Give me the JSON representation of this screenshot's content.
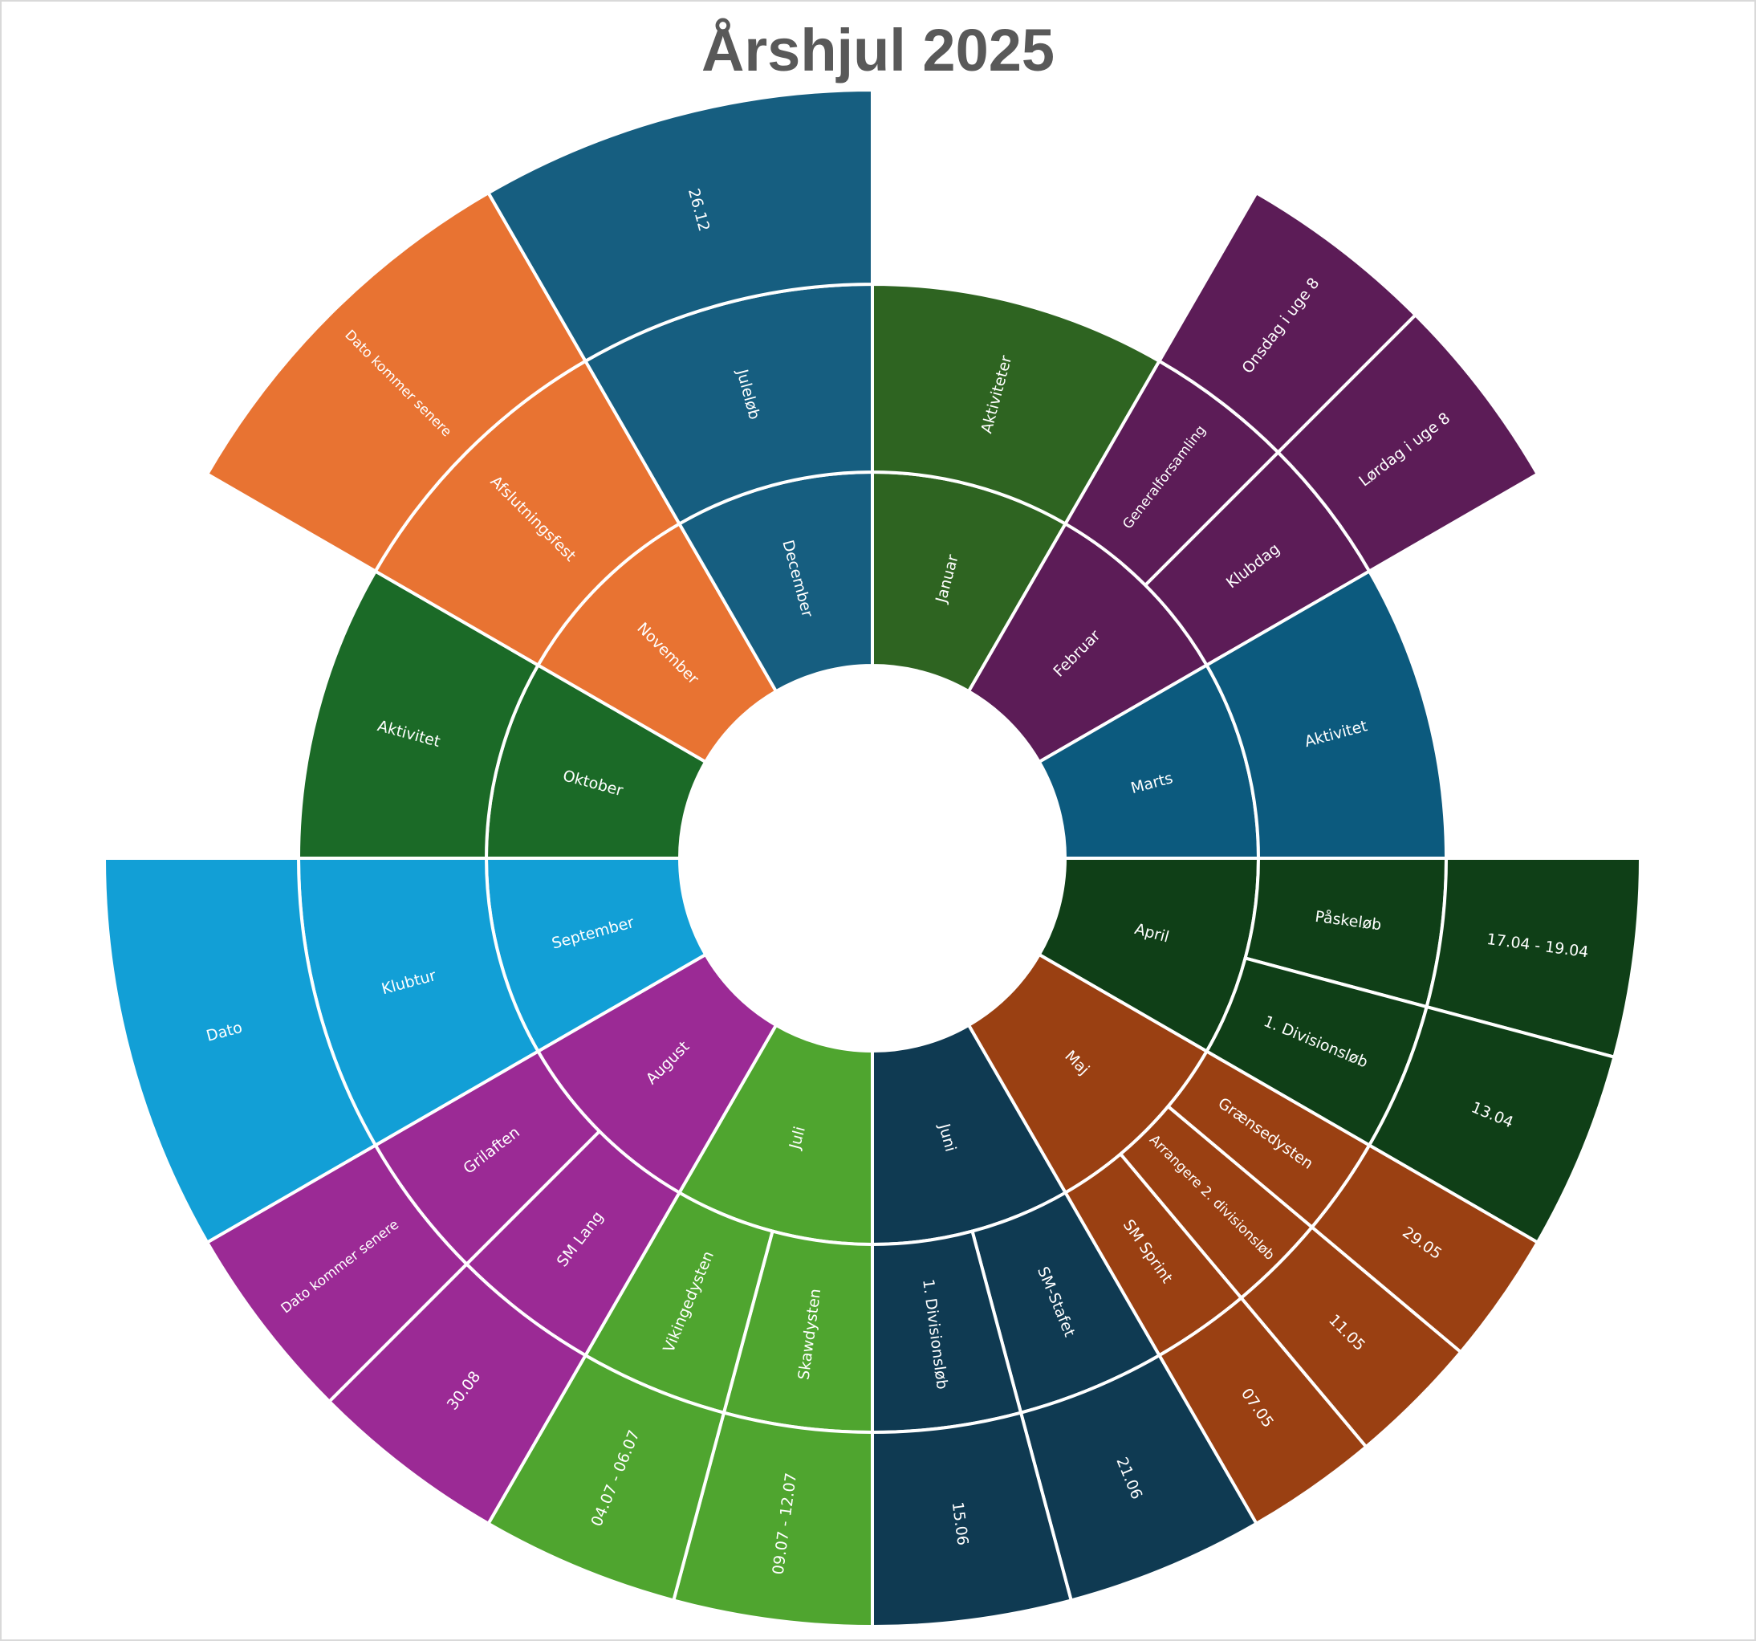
{
  "chart_data": {
    "type": "sunburst",
    "title": "Årshjul 2025",
    "colors": {
      "Januar": "#2e6421",
      "Februar": "#5c1c57",
      "Marts": "#0c5a7e",
      "April": "#0f3f17",
      "Maj": "#9a4012",
      "Juni": "#0f3a52",
      "Juli": "#4fa52f",
      "August": "#9b2a95",
      "September": "#129fd6",
      "Oktober": "#1b6a27",
      "November": "#e87332",
      "December": "#165e80"
    },
    "months": [
      {
        "label": "Januar",
        "children": [
          {
            "label": "Aktiviteter",
            "children": []
          }
        ]
      },
      {
        "label": "Februar",
        "children": [
          {
            "label": "Generalforsamling",
            "children": [
              {
                "label": "Onsdag i uge 8"
              }
            ]
          },
          {
            "label": "Klubdag",
            "children": [
              {
                "label": "Lørdag i uge 8"
              }
            ]
          }
        ]
      },
      {
        "label": "Marts",
        "children": [
          {
            "label": "Aktivitet",
            "children": []
          }
        ]
      },
      {
        "label": "April",
        "children": [
          {
            "label": "Påskeløb",
            "children": [
              {
                "label": "17.04 - 19.04"
              }
            ]
          },
          {
            "label": "1. Divisionsløb",
            "children": [
              {
                "label": "13.04"
              }
            ]
          }
        ]
      },
      {
        "label": "Maj",
        "children": [
          {
            "label": "Grænsedysten",
            "children": [
              {
                "label": "29.05"
              }
            ]
          },
          {
            "label": "Arrangere 2. divisionsløb",
            "children": [
              {
                "label": "11.05"
              }
            ]
          },
          {
            "label": "SM Sprint",
            "children": [
              {
                "label": "07.05"
              }
            ]
          }
        ]
      },
      {
        "label": "Juni",
        "children": [
          {
            "label": "SM-Stafet",
            "children": [
              {
                "label": "21.06"
              }
            ]
          },
          {
            "label": "1. Divisionsløb",
            "children": [
              {
                "label": "15.06"
              }
            ]
          }
        ]
      },
      {
        "label": "Juli",
        "children": [
          {
            "label": "Skawdysten",
            "children": [
              {
                "label": "09.07 - 12.07"
              }
            ]
          },
          {
            "label": "Vikingedysten",
            "children": [
              {
                "label": "04.07 - 06.07"
              }
            ]
          }
        ]
      },
      {
        "label": "August",
        "children": [
          {
            "label": "SM Lang",
            "children": [
              {
                "label": "30.08"
              }
            ]
          },
          {
            "label": "Grilaften",
            "children": [
              {
                "label": "Dato kommer senere"
              }
            ]
          }
        ]
      },
      {
        "label": "September",
        "children": [
          {
            "label": "Klubtur",
            "children": [
              {
                "label": "Dato"
              }
            ]
          }
        ]
      },
      {
        "label": "Oktober",
        "children": [
          {
            "label": "Aktivitet",
            "children": []
          }
        ]
      },
      {
        "label": "November",
        "children": [
          {
            "label": "Afslutningsfest",
            "children": [
              {
                "label": "Dato kommer senere"
              }
            ]
          }
        ]
      },
      {
        "label": "December",
        "children": [
          {
            "label": "Juleløb",
            "children": [
              {
                "label": "26.12"
              }
            ]
          }
        ]
      }
    ]
  }
}
